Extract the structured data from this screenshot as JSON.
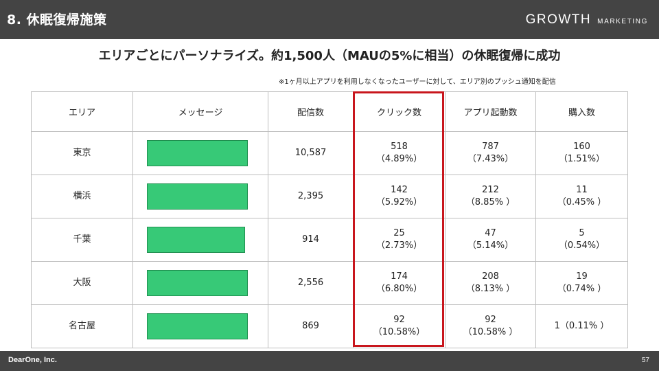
{
  "header": {
    "title": "8. 休眠復帰施策",
    "logo_main": "GROWTH",
    "logo_sub": "MARKETING"
  },
  "headline": "エリアごとにパーソナライズ。約1,500人（MAUの5%に相当）の休眠復帰に成功",
  "note": "※1ヶ月以上アプリを利用しなくなったユーザーに対して、エリア別のプッシュ通知を配信",
  "table": {
    "columns": [
      "エリア",
      "メッセージ",
      "配信数",
      "クリック数",
      "アプリ起動数",
      "購入数"
    ],
    "rows": [
      {
        "area": "東京",
        "message_bar_level": 0.98,
        "sent": "10,587",
        "clicks": "518",
        "clicks_rate": "（4.89%）",
        "launches": "787",
        "launches_rate": "（7.43%）",
        "purchases": "160",
        "purchases_rate": "（1.51%）"
      },
      {
        "area": "横浜",
        "message_bar_level": 0.98,
        "sent": "2,395",
        "clicks": "142",
        "clicks_rate": "（5.92%）",
        "launches": "212",
        "launches_rate": "（8.85% ）",
        "purchases": "11",
        "purchases_rate": "（0.45% ）"
      },
      {
        "area": "千葉",
        "message_bar_level": 0.95,
        "sent": "914",
        "clicks": "25",
        "clicks_rate": "（2.73%）",
        "launches": "47",
        "launches_rate": "（5.14%）",
        "purchases": "5",
        "purchases_rate": "（0.54%）"
      },
      {
        "area": "大阪",
        "message_bar_level": 0.98,
        "sent": "2,556",
        "clicks": "174",
        "clicks_rate": "（6.80%）",
        "launches": "208",
        "launches_rate": "（8.13% ）",
        "purchases": "19",
        "purchases_rate": "（0.74% ）"
      },
      {
        "area": "名古屋",
        "message_bar_level": 0.98,
        "sent": "869",
        "clicks": "92",
        "clicks_rate": "（10.58%）",
        "launches": "92",
        "launches_rate": "（10.58% ）",
        "purchases": "1（0.11% ）",
        "purchases_rate": ""
      }
    ],
    "highlight_column": "クリック数"
  },
  "colors": {
    "header_bg": "#444444",
    "message_bar": "#37c977",
    "highlight_border": "#c8161d"
  },
  "footer": {
    "company": "DearOne, Inc.",
    "page_number": "57"
  }
}
